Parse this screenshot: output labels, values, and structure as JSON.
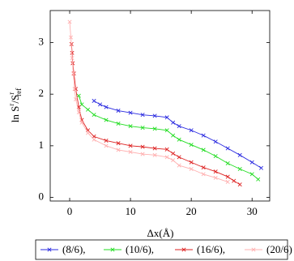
{
  "chart_data": {
    "type": "line",
    "xlabel": "Δx(Å)",
    "ylabel_parts": [
      "ln S",
      "r",
      "/S",
      "r",
      "ref"
    ],
    "xlim": [
      -3.2,
      32.9
    ],
    "xticks": [
      0,
      10,
      20,
      30
    ],
    "ylim": [
      -0.07,
      3.62
    ],
    "yticks": [
      0,
      1,
      2,
      3
    ],
    "marker": "x",
    "series": [
      {
        "name": "(8/6),",
        "color": "#2a2ae0",
        "x": [
          4,
          5,
          6,
          8,
          10,
          12,
          14,
          16,
          17,
          18,
          20,
          22,
          24,
          26,
          28,
          30,
          31.5
        ],
        "values": [
          1.87,
          1.8,
          1.75,
          1.68,
          1.64,
          1.6,
          1.58,
          1.55,
          1.45,
          1.38,
          1.3,
          1.2,
          1.08,
          0.95,
          0.82,
          0.68,
          0.57
        ]
      },
      {
        "name": "(10/6),",
        "color": "#22dd22",
        "x": [
          1.5,
          2,
          3,
          4,
          6,
          8,
          10,
          12,
          14,
          16,
          17,
          18,
          20,
          22,
          24,
          26,
          28,
          30,
          31
        ],
        "values": [
          1.97,
          1.8,
          1.7,
          1.6,
          1.5,
          1.43,
          1.38,
          1.35,
          1.33,
          1.3,
          1.2,
          1.12,
          1.02,
          0.92,
          0.8,
          0.66,
          0.55,
          0.45,
          0.35
        ]
      },
      {
        "name": "(16/6),",
        "color": "#dd2222",
        "x": [
          0.3,
          0.4,
          0.5,
          0.7,
          1,
          1.5,
          2,
          3,
          4,
          6,
          8,
          10,
          12,
          14,
          16,
          17,
          18,
          20,
          22,
          24,
          26,
          27,
          28
        ],
        "values": [
          2.97,
          2.8,
          2.6,
          2.4,
          2.1,
          1.75,
          1.5,
          1.3,
          1.18,
          1.1,
          1.05,
          1.0,
          0.98,
          0.95,
          0.93,
          0.85,
          0.78,
          0.68,
          0.58,
          0.5,
          0.4,
          0.32,
          0.25
        ]
      },
      {
        "name": "(20/6)",
        "color": "#ffb0b0",
        "x": [
          0,
          0.2,
          0.4,
          0.6,
          0.8,
          1,
          1.5,
          2,
          3,
          4,
          6,
          8,
          10,
          12,
          14,
          16,
          17,
          18,
          20,
          22,
          24,
          26
        ],
        "values": [
          3.4,
          3.1,
          2.7,
          2.4,
          2.1,
          1.9,
          1.65,
          1.45,
          1.25,
          1.12,
          1.0,
          0.92,
          0.88,
          0.84,
          0.82,
          0.78,
          0.72,
          0.62,
          0.55,
          0.45,
          0.38,
          0.3
        ]
      }
    ]
  }
}
